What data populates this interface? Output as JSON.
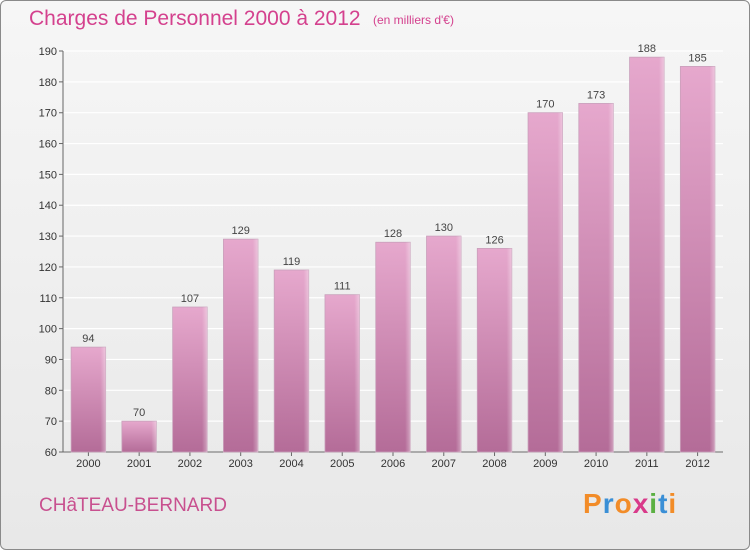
{
  "title": "Charges de Personnel 2000 à 2012",
  "unit_note": "(en milliers d'€)",
  "commune": "CHâTEAU-BERNARD",
  "logo": {
    "text": "Proxiti",
    "letters": [
      {
        "ch": "P",
        "color": "#f28c28"
      },
      {
        "ch": "r",
        "color": "#3a8fd6"
      },
      {
        "ch": "o",
        "color": "#f28c28"
      },
      {
        "ch": "x",
        "color": "#d93a8a"
      },
      {
        "ch": "i",
        "color": "#5bb043"
      },
      {
        "ch": "t",
        "color": "#3a8fd6"
      },
      {
        "ch": "i",
        "color": "#f28c28"
      }
    ]
  },
  "colors": {
    "bar_top": "#e6a8cd",
    "bar_bottom": "#b46c98",
    "title": "#d4418e"
  },
  "chart_data": {
    "type": "bar",
    "title": "Charges de Personnel 2000 à 2012",
    "subtitle": "(en milliers d'€)",
    "categories": [
      "2000",
      "2001",
      "2002",
      "2003",
      "2004",
      "2005",
      "2006",
      "2007",
      "2008",
      "2009",
      "2010",
      "2011",
      "2012"
    ],
    "values": [
      94,
      70,
      107,
      129,
      119,
      111,
      128,
      130,
      126,
      170,
      173,
      188,
      185
    ],
    "ylim": [
      60,
      190
    ],
    "yticks": [
      60,
      70,
      80,
      90,
      100,
      110,
      120,
      130,
      140,
      150,
      160,
      170,
      180,
      190
    ],
    "grid": true,
    "xlabel": "",
    "ylabel": ""
  }
}
